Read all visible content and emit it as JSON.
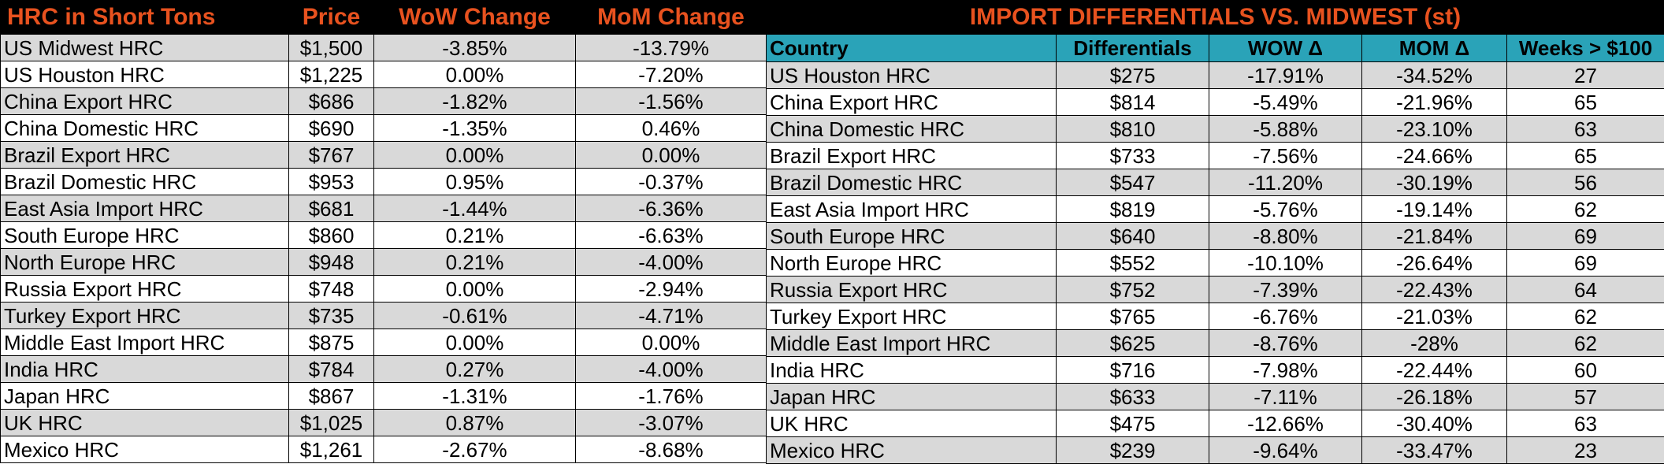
{
  "left": {
    "headers": [
      "HRC in Short Tons",
      "Price",
      "WoW Change",
      "MoM Change"
    ],
    "rows": [
      {
        "name": "US Midwest HRC",
        "price": "$1,500",
        "wow": "-3.85%",
        "mom": "-13.79%"
      },
      {
        "name": "US Houston HRC",
        "price": "$1,225",
        "wow": "0.00%",
        "mom": "-7.20%"
      },
      {
        "name": "China Export HRC",
        "price": "$686",
        "wow": "-1.82%",
        "mom": "-1.56%"
      },
      {
        "name": "China Domestic HRC",
        "price": "$690",
        "wow": "-1.35%",
        "mom": "0.46%"
      },
      {
        "name": "Brazil Export HRC",
        "price": "$767",
        "wow": "0.00%",
        "mom": "0.00%"
      },
      {
        "name": "Brazil Domestic HRC",
        "price": "$953",
        "wow": "0.95%",
        "mom": "-0.37%"
      },
      {
        "name": "East Asia Import HRC",
        "price": "$681",
        "wow": "-1.44%",
        "mom": "-6.36%"
      },
      {
        "name": "South Europe HRC",
        "price": "$860",
        "wow": "0.21%",
        "mom": "-6.63%"
      },
      {
        "name": "North Europe HRC",
        "price": "$948",
        "wow": "0.21%",
        "mom": "-4.00%"
      },
      {
        "name": "Russia Export HRC",
        "price": "$748",
        "wow": "0.00%",
        "mom": "-2.94%"
      },
      {
        "name": "Turkey Export HRC",
        "price": "$735",
        "wow": "-0.61%",
        "mom": "-4.71%"
      },
      {
        "name": "Middle East Import HRC",
        "price": "$875",
        "wow": "0.00%",
        "mom": "0.00%"
      },
      {
        "name": "India HRC",
        "price": "$784",
        "wow": "0.27%",
        "mom": "-4.00%"
      },
      {
        "name": "Japan HRC",
        "price": "$867",
        "wow": "-1.31%",
        "mom": "-1.76%"
      },
      {
        "name": "UK HRC",
        "price": "$1,025",
        "wow": "0.87%",
        "mom": "-3.07%"
      },
      {
        "name": "Mexico HRC",
        "price": "$1,261",
        "wow": "-2.67%",
        "mom": "-8.68%"
      }
    ]
  },
  "right": {
    "title": "IMPORT DIFFERENTIALS VS. MIDWEST (st)",
    "headers": [
      "Country",
      "Differentials",
      "WOW Δ",
      "MOM Δ",
      "Weeks > $100"
    ],
    "rows": [
      {
        "name": "US Houston HRC",
        "diff": "$275",
        "wow": "-17.91%",
        "mom": "-34.52%",
        "weeks": "27"
      },
      {
        "name": "China Export HRC",
        "diff": "$814",
        "wow": "-5.49%",
        "mom": "-21.96%",
        "weeks": "65"
      },
      {
        "name": "China Domestic HRC",
        "diff": "$810",
        "wow": "-5.88%",
        "mom": "-23.10%",
        "weeks": "63"
      },
      {
        "name": "Brazil Export HRC",
        "diff": "$733",
        "wow": "-7.56%",
        "mom": "-24.66%",
        "weeks": "65"
      },
      {
        "name": "Brazil Domestic HRC",
        "diff": "$547",
        "wow": "-11.20%",
        "mom": "-30.19%",
        "weeks": "56"
      },
      {
        "name": "East Asia Import HRC",
        "diff": "$819",
        "wow": "-5.76%",
        "mom": "-19.14%",
        "weeks": "62"
      },
      {
        "name": "South Europe HRC",
        "diff": "$640",
        "wow": "-8.80%",
        "mom": "-21.84%",
        "weeks": "69"
      },
      {
        "name": "North Europe HRC",
        "diff": "$552",
        "wow": "-10.10%",
        "mom": "-26.64%",
        "weeks": "69"
      },
      {
        "name": "Russia Export HRC",
        "diff": "$752",
        "wow": "-7.39%",
        "mom": "-22.43%",
        "weeks": "64"
      },
      {
        "name": "Turkey Export HRC",
        "diff": "$765",
        "wow": "-6.76%",
        "mom": "-21.03%",
        "weeks": "62"
      },
      {
        "name": "Middle East Import HRC",
        "diff": "$625",
        "wow": "-8.76%",
        "mom": "-28%",
        "weeks": "62"
      },
      {
        "name": "India HRC",
        "diff": "$716",
        "wow": "-7.98%",
        "mom": "-22.44%",
        "weeks": "60"
      },
      {
        "name": "Japan HRC",
        "diff": "$633",
        "wow": "-7.11%",
        "mom": "-26.18%",
        "weeks": "57"
      },
      {
        "name": "UK HRC",
        "diff": "$475",
        "wow": "-12.66%",
        "mom": "-30.40%",
        "weeks": "63"
      },
      {
        "name": "Mexico HRC",
        "diff": "$239",
        "wow": "-9.64%",
        "mom": "-33.47%",
        "weeks": "23"
      }
    ]
  },
  "colors": {
    "title_bg": "#000000",
    "title_text": "#e8521f",
    "header_bg": "#2aa3b8",
    "row_shade": "#d9d9d9",
    "row_plain": "#ffffff"
  }
}
